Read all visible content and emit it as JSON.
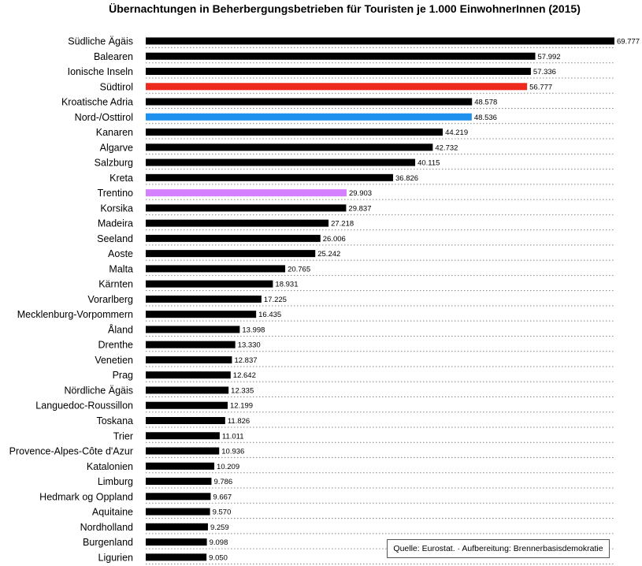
{
  "chart_data": {
    "type": "bar",
    "orientation": "horizontal",
    "title": "Übernachtungen in Beherbergungsbetrieben für Touristen je 1.000 EinwohnerInnen (2015)",
    "xlim": [
      0,
      69777
    ],
    "grid": "dotted row separators",
    "categories": [
      "Südliche Ägäis",
      "Balearen",
      "Ionische Inseln",
      "Südtirol",
      "Kroatische Adria",
      "Nord-/Osttirol",
      "Kanaren",
      "Algarve",
      "Salzburg",
      "Kreta",
      "Trentino",
      "Korsika",
      "Madeira",
      "Seeland",
      "Aoste",
      "Malta",
      "Kärnten",
      "Vorarlberg",
      "Mecklenburg-Vorpommern",
      "Åland",
      "Drenthe",
      "Venetien",
      "Prag",
      "Nördliche Ägäis",
      "Languedoc-Roussillon",
      "Toskana",
      "Trier",
      "Provence-Alpes-Côte d'Azur",
      "Katalonien",
      "Limburg",
      "Hedmark og Oppland",
      "Aquitaine",
      "Nordholland",
      "Burgenland",
      "Ligurien"
    ],
    "values": [
      69777,
      57992,
      57336,
      56777,
      48578,
      48536,
      44219,
      42732,
      40115,
      36826,
      29903,
      29837,
      27218,
      26006,
      25242,
      20765,
      18931,
      17225,
      16435,
      13998,
      13330,
      12837,
      12642,
      12335,
      12199,
      11826,
      11011,
      10936,
      10209,
      9786,
      9667,
      9570,
      9259,
      9098,
      9050
    ],
    "value_labels": [
      "69.777",
      "57.992",
      "57.336",
      "56.777",
      "48.578",
      "48.536",
      "44.219",
      "42.732",
      "40.115",
      "36.826",
      "29.903",
      "29.837",
      "27.218",
      "26.006",
      "25.242",
      "20.765",
      "18.931",
      "17.225",
      "16.435",
      "13.998",
      "13.330",
      "12.837",
      "12.642",
      "12.335",
      "12.199",
      "11.826",
      "11.011",
      "10.936",
      "10.209",
      "9.786",
      "9.667",
      "9.570",
      "9.259",
      "9.098",
      "9.050"
    ],
    "default_color": "#000000",
    "highlight_colors": {
      "Südtirol": "#ee2a1e",
      "Nord-/Osttirol": "#1e90ee",
      "Trentino": "#d580ff"
    }
  },
  "source": "Quelle: Eurostat. · Aufbereitung: Brennerbasisdemokratie"
}
